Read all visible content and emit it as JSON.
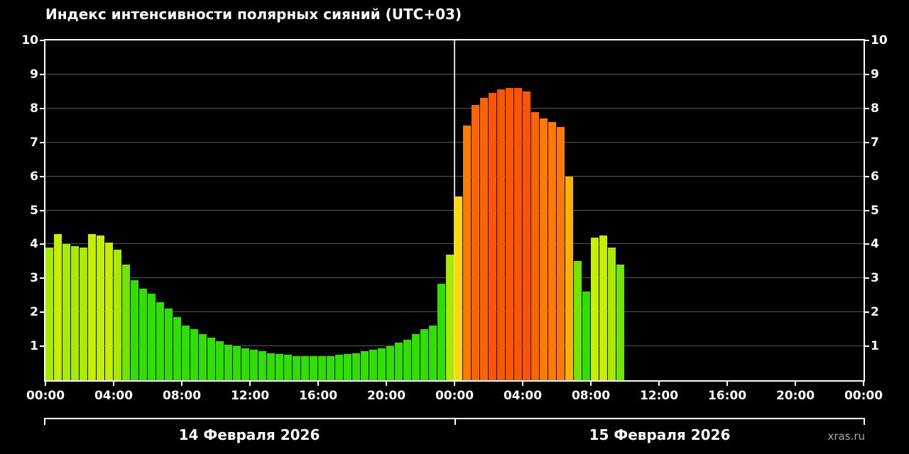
{
  "chart_data": {
    "type": "bar",
    "title": "Индекс интенсивности полярных сияний (UTC+03)",
    "watermark": "xras.ru",
    "ylim": [
      0,
      10
    ],
    "y_ticks": [
      1,
      2,
      3,
      4,
      5,
      6,
      7,
      8,
      9,
      10
    ],
    "total_hours": 48,
    "bar_interval_hours": 0.5,
    "grid": true,
    "background_color": "#000000",
    "axis_color": "#ffffff",
    "grid_color": "#565656",
    "midnight_line_color": "#d9d9d9",
    "text_color": "#ffffff",
    "x_ticks": [
      {
        "hour": 0,
        "label": "00:00"
      },
      {
        "hour": 4,
        "label": "04:00"
      },
      {
        "hour": 8,
        "label": "08:00"
      },
      {
        "hour": 12,
        "label": "12:00"
      },
      {
        "hour": 16,
        "label": "16:00"
      },
      {
        "hour": 20,
        "label": "20:00"
      },
      {
        "hour": 24,
        "label": "00:00"
      },
      {
        "hour": 28,
        "label": "04:00"
      },
      {
        "hour": 32,
        "label": "08:00"
      },
      {
        "hour": 36,
        "label": "12:00"
      },
      {
        "hour": 40,
        "label": "16:00"
      },
      {
        "hour": 44,
        "label": "20:00"
      },
      {
        "hour": 48,
        "label": "00:00"
      }
    ],
    "day_labels": [
      "14 Февраля 2026",
      "15 Февраля 2026"
    ],
    "values": [
      3.9,
      4.3,
      4.0,
      3.95,
      3.9,
      4.3,
      4.25,
      4.05,
      3.85,
      3.4,
      2.95,
      2.7,
      2.55,
      2.3,
      2.1,
      1.85,
      1.6,
      1.5,
      1.35,
      1.25,
      1.15,
      1.05,
      1.0,
      0.95,
      0.9,
      0.85,
      0.8,
      0.78,
      0.75,
      0.72,
      0.7,
      0.7,
      0.7,
      0.72,
      0.75,
      0.78,
      0.8,
      0.85,
      0.9,
      0.95,
      1.0,
      1.1,
      1.2,
      1.35,
      1.5,
      1.6,
      2.85,
      3.7,
      5.4,
      7.5,
      8.1,
      8.3,
      8.45,
      8.55,
      8.6,
      8.6,
      8.5,
      7.9,
      7.7,
      7.6,
      7.45,
      6.0,
      3.5,
      2.6,
      4.2,
      4.25,
      3.9,
      3.4
    ],
    "color_stops": [
      {
        "max": 3.0,
        "color": "#2ee000"
      },
      {
        "max": 3.6,
        "color": "#6fe600"
      },
      {
        "max": 4.0,
        "color": "#a8ea00"
      },
      {
        "max": 4.5,
        "color": "#c6ee00"
      },
      {
        "max": 5.0,
        "color": "#e8f000"
      },
      {
        "max": 5.7,
        "color": "#ffd900"
      },
      {
        "max": 6.5,
        "color": "#ffb300"
      },
      {
        "max": 7.2,
        "color": "#ff9100"
      },
      {
        "max": 7.8,
        "color": "#ff7a00"
      },
      {
        "max": 8.3,
        "color": "#ff6400"
      },
      {
        "max": 10.0,
        "color": "#ff5400"
      }
    ]
  }
}
